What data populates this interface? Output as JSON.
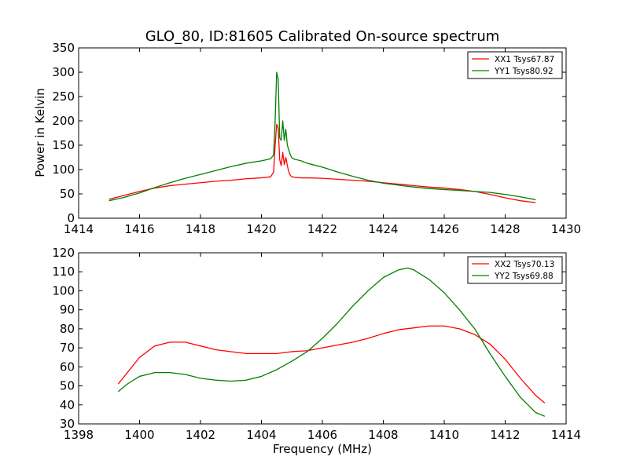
{
  "colors": {
    "red": "#ff0000",
    "green": "#008000",
    "axes": "#000000",
    "background": "#ffffff"
  },
  "chart_data": [
    {
      "type": "line",
      "title": "GLO_80, ID:81605 Calibrated On-source spectrum",
      "xlabel": "",
      "ylabel": "Power in Kelvin",
      "xlim": [
        1414,
        1430
      ],
      "ylim": [
        0,
        350
      ],
      "xticks": [
        1414,
        1416,
        1418,
        1420,
        1422,
        1424,
        1426,
        1428,
        1430
      ],
      "yticks": [
        0,
        50,
        100,
        150,
        200,
        250,
        300,
        350
      ],
      "grid": false,
      "legend_position": "top-right",
      "series": [
        {
          "name": "XX1 Tsys67.87",
          "color": "#ff0000",
          "x": [
            1415.0,
            1415.5,
            1416.0,
            1416.5,
            1417.0,
            1417.5,
            1418.0,
            1418.5,
            1419.0,
            1419.5,
            1420.0,
            1420.3,
            1420.4,
            1420.45,
            1420.5,
            1420.55,
            1420.6,
            1420.65,
            1420.7,
            1420.75,
            1420.8,
            1420.85,
            1420.9,
            1420.95,
            1421.0,
            1421.1,
            1421.3,
            1421.5,
            1422.0,
            1422.5,
            1423.0,
            1423.5,
            1424.0,
            1424.5,
            1425.0,
            1425.5,
            1426.0,
            1426.5,
            1427.0,
            1427.5,
            1428.0,
            1428.5,
            1429.0
          ],
          "y": [
            39,
            47,
            55,
            62,
            67,
            70,
            73,
            76,
            78,
            81,
            83,
            85,
            95,
            150,
            193,
            185,
            120,
            108,
            135,
            110,
            125,
            108,
            95,
            88,
            85,
            84,
            83,
            83,
            82,
            80,
            78,
            76,
            73,
            70,
            67,
            64,
            62,
            59,
            55,
            49,
            42,
            36,
            32
          ]
        },
        {
          "name": "YY1 Tsys80.92",
          "color": "#008000",
          "x": [
            1415.0,
            1415.5,
            1416.0,
            1416.5,
            1417.0,
            1417.5,
            1418.0,
            1418.5,
            1419.0,
            1419.5,
            1420.0,
            1420.3,
            1420.4,
            1420.45,
            1420.5,
            1420.55,
            1420.6,
            1420.65,
            1420.7,
            1420.75,
            1420.8,
            1420.85,
            1420.9,
            1420.95,
            1421.0,
            1421.1,
            1421.3,
            1421.5,
            1422.0,
            1422.5,
            1423.0,
            1423.5,
            1424.0,
            1424.5,
            1425.0,
            1425.5,
            1426.0,
            1426.5,
            1427.0,
            1427.5,
            1428.0,
            1428.5,
            1429.0
          ],
          "y": [
            36,
            43,
            52,
            63,
            73,
            82,
            90,
            98,
            106,
            113,
            118,
            122,
            130,
            200,
            300,
            285,
            165,
            160,
            200,
            160,
            183,
            150,
            140,
            130,
            124,
            121,
            118,
            113,
            105,
            95,
            86,
            78,
            72,
            68,
            64,
            61,
            59,
            57,
            55,
            53,
            49,
            44,
            38
          ]
        }
      ]
    },
    {
      "type": "line",
      "title": "",
      "xlabel": "Frequency (MHz)",
      "ylabel": "",
      "xlim": [
        1398,
        1414
      ],
      "ylim": [
        30,
        120
      ],
      "xticks": [
        1398,
        1400,
        1402,
        1404,
        1406,
        1408,
        1410,
        1412,
        1414
      ],
      "yticks": [
        30,
        40,
        50,
        60,
        70,
        80,
        90,
        100,
        110,
        120
      ],
      "grid": false,
      "legend_position": "top-right",
      "series": [
        {
          "name": "XX2 Tsys70.13",
          "color": "#ff0000",
          "x": [
            1399.3,
            1399.6,
            1400.0,
            1400.5,
            1401.0,
            1401.5,
            1402.0,
            1402.5,
            1403.0,
            1403.5,
            1404.0,
            1404.5,
            1405.0,
            1405.5,
            1406.0,
            1406.5,
            1407.0,
            1407.5,
            1408.0,
            1408.5,
            1409.0,
            1409.5,
            1410.0,
            1410.5,
            1411.0,
            1411.5,
            1412.0,
            1412.5,
            1413.0,
            1413.3
          ],
          "y": [
            51,
            57,
            65,
            71,
            73,
            73,
            71,
            69,
            68,
            67,
            67,
            67,
            68,
            68.5,
            70,
            71.5,
            73,
            75,
            77.5,
            79.5,
            80.5,
            81.5,
            81.5,
            80,
            77,
            72,
            64,
            54,
            45,
            41
          ]
        },
        {
          "name": "YY2 Tsys69.88",
          "color": "#008000",
          "x": [
            1399.3,
            1399.6,
            1400.0,
            1400.5,
            1401.0,
            1401.5,
            1402.0,
            1402.5,
            1403.0,
            1403.5,
            1404.0,
            1404.5,
            1405.0,
            1405.5,
            1406.0,
            1406.5,
            1407.0,
            1407.5,
            1408.0,
            1408.5,
            1408.8,
            1409.0,
            1409.5,
            1410.0,
            1410.5,
            1411.0,
            1411.5,
            1412.0,
            1412.5,
            1413.0,
            1413.3
          ],
          "y": [
            47,
            51,
            55,
            57,
            57,
            56,
            54,
            53,
            52.5,
            53,
            55,
            58.5,
            63,
            68,
            75,
            83,
            92,
            100,
            107,
            111,
            112,
            111,
            106,
            99,
            90,
            80,
            67,
            55,
            44,
            36,
            34
          ]
        }
      ]
    }
  ]
}
